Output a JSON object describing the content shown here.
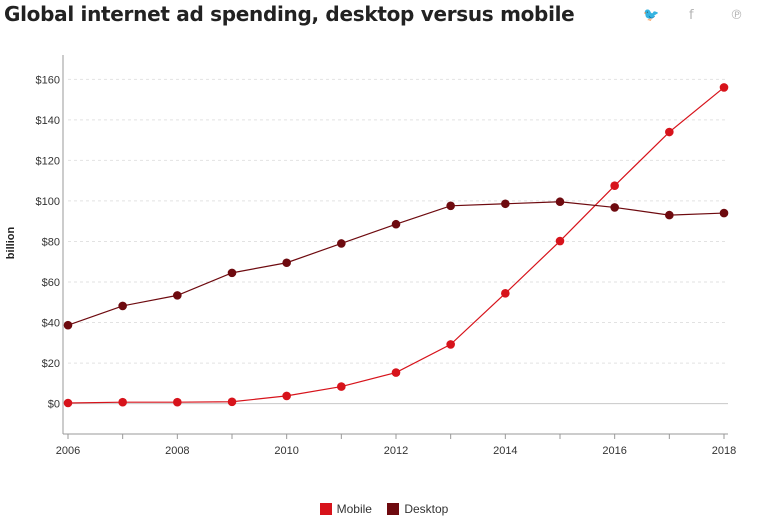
{
  "header": {
    "title": "Global internet ad spending, desktop versus mobile"
  },
  "share": {
    "twitter_icon": "twitter-icon",
    "twitter_glyph": "🐦",
    "facebook_icon": "facebook-icon",
    "facebook_glyph": "f",
    "pinterest_icon": "pinterest-icon",
    "pinterest_glyph": "℗"
  },
  "colors": {
    "mobile": "#d7131b",
    "desktop": "#6e0a0f"
  },
  "chart_data": {
    "type": "line",
    "title": "Global internet ad spending, desktop versus mobile",
    "xlabel": "",
    "ylabel": "billion",
    "x": [
      2006,
      2007,
      2008,
      2009,
      2010,
      2011,
      2012,
      2013,
      2014,
      2015,
      2016,
      2017,
      2018
    ],
    "x_tick_labels": [
      "2006",
      "2008",
      "2010",
      "2012",
      "2014",
      "2016",
      "2018"
    ],
    "y_tick_labels": [
      "$0",
      "$20",
      "$40",
      "$60",
      "$80",
      "$100",
      "$120",
      "$140",
      "$160"
    ],
    "ylim": [
      -15,
      172
    ],
    "grid": true,
    "legend_position": "bottom",
    "series": [
      {
        "name": "Mobile",
        "values": [
          0.3,
          0.7,
          0.7,
          0.9,
          3.8,
          8.4,
          15.3,
          29.2,
          54.4,
          80.2,
          107.5,
          134,
          156
        ]
      },
      {
        "name": "Desktop",
        "values": [
          38.7,
          48.2,
          53.4,
          64.5,
          69.5,
          79,
          88.5,
          97.6,
          98.6,
          99.6,
          96.8,
          93,
          94
        ]
      }
    ]
  }
}
